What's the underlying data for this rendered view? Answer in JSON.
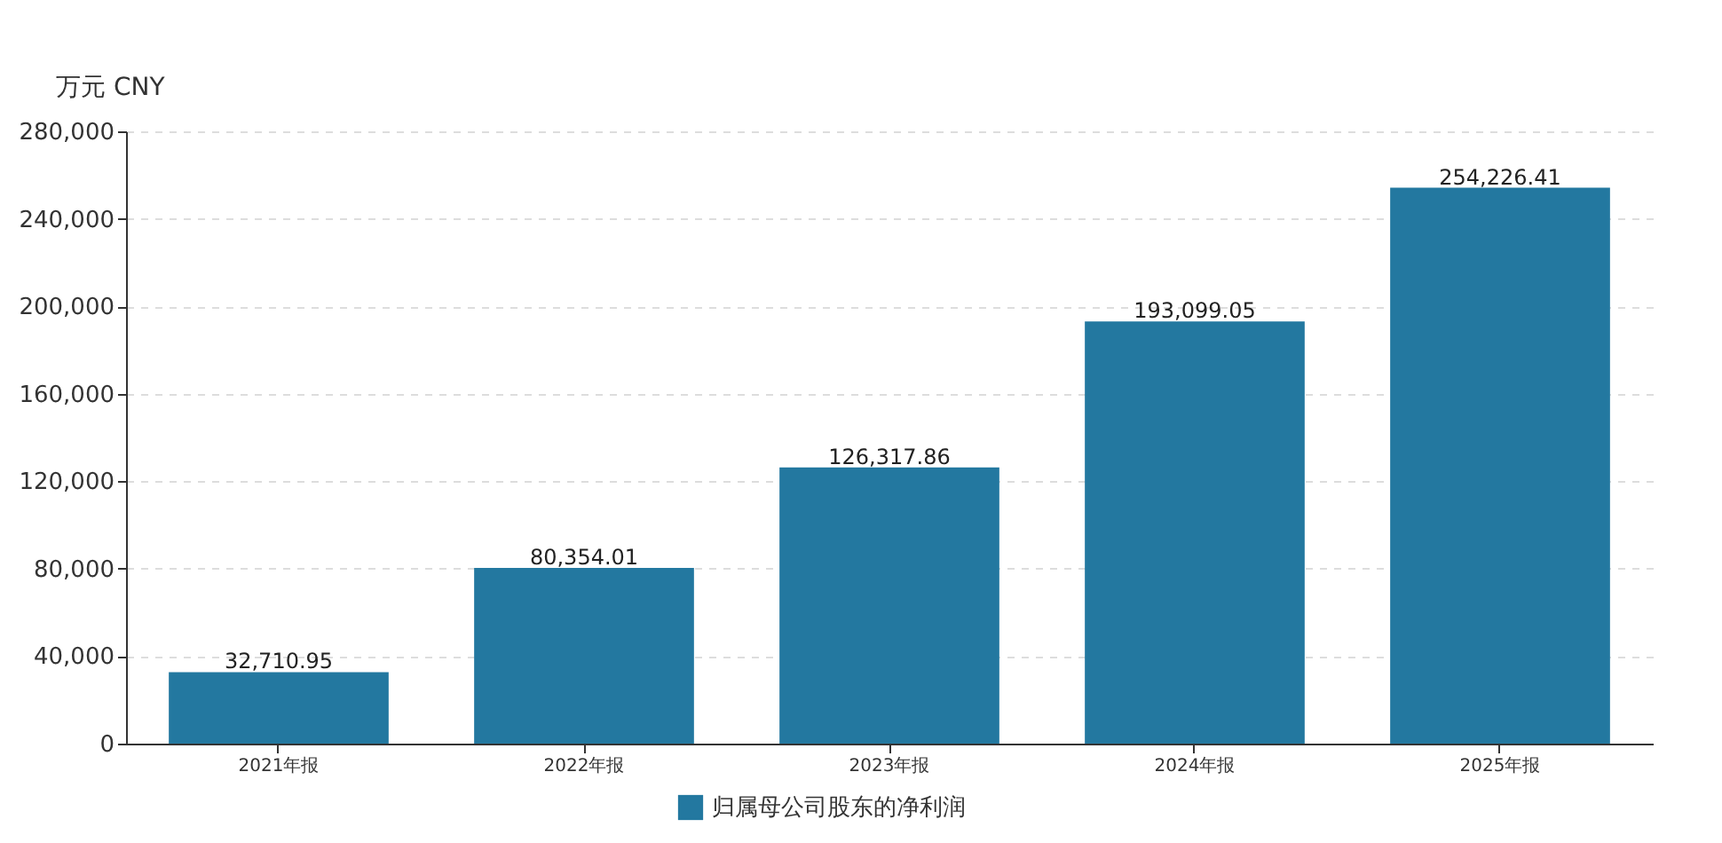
{
  "chart_data": {
    "type": "bar",
    "ylabel": "万元  CNY",
    "categories": [
      "2021年报",
      "2022年报",
      "2023年报",
      "2024年报",
      "2025年报"
    ],
    "series": [
      {
        "name": "归属母公司股东的净利润",
        "color": "#2378a0",
        "values": [
          32710.95,
          80354.01,
          126317.86,
          193099.05,
          254226.41
        ],
        "value_labels": [
          "32,710.95",
          "80,354.01",
          "126,317.86",
          "193,099.05",
          "254,226.41"
        ]
      }
    ],
    "ylim": [
      0,
      280000
    ],
    "yticks": [
      0,
      {
        "value": 40000,
        "label": "40,000"
      },
      {
        "value": 80000,
        "label": "80,000"
      },
      {
        "value": 120000,
        "label": "120,000"
      },
      {
        "value": 160000,
        "label": "160,000"
      },
      {
        "value": 200000,
        "label": "200,000"
      },
      {
        "value": 240000,
        "label": "240,000"
      },
      {
        "value": 280000,
        "label": "280,000"
      }
    ],
    "grid": "y",
    "legend": "bottom"
  }
}
